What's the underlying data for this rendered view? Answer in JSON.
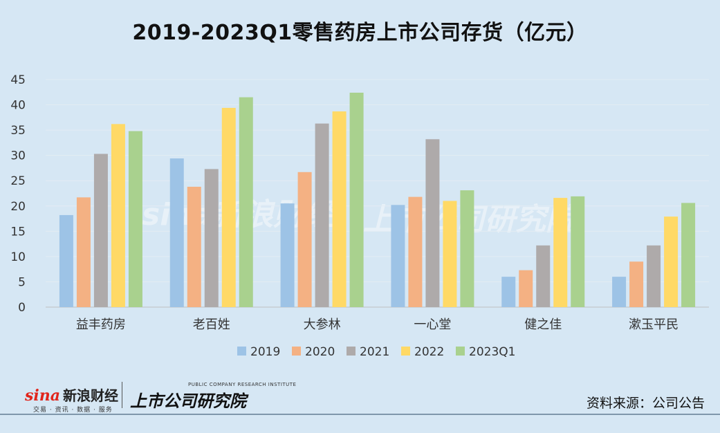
{
  "title": "2019-2023Q1零售药房上市公司存货（亿元）",
  "source": "资料来源：公司公告",
  "logo_sina": {
    "brand": "sina",
    "brand_cn": "新浪财经",
    "sub": "交易 · 资讯 · 数据 · 服务"
  },
  "logo_research": {
    "en": "PUBLIC COMPANY RESEARCH INSTITUTE",
    "cn": "上市公司研究院"
  },
  "watermark": {
    "left": "sina新浪财经",
    "right": "上市公司研究院"
  },
  "colors": {
    "2019": "#9dc3e6",
    "2020": "#f4b183",
    "2021": "#aeaaaa",
    "2022": "#ffd966",
    "2023Q1": "#a9d18e"
  },
  "chart_data": {
    "type": "bar",
    "title": "2019-2023Q1零售药房上市公司存货（亿元）",
    "categories": [
      "益丰药房",
      "老百姓",
      "大参林",
      "一心堂",
      "健之佳",
      "漱玉平民"
    ],
    "ylim": [
      0,
      45
    ],
    "yticks": [
      0,
      5,
      10,
      15,
      20,
      25,
      30,
      35,
      40,
      45
    ],
    "grid": true,
    "legend_position": "bottom",
    "series": [
      {
        "name": "2019",
        "values": [
          18.2,
          29.4,
          20.5,
          20.2,
          6.0,
          6.0
        ]
      },
      {
        "name": "2020",
        "values": [
          21.7,
          23.8,
          26.7,
          21.8,
          7.3,
          9.0
        ]
      },
      {
        "name": "2021",
        "values": [
          30.3,
          27.3,
          36.3,
          33.2,
          12.2,
          12.2
        ]
      },
      {
        "name": "2022",
        "values": [
          36.2,
          39.4,
          38.7,
          21.0,
          21.6,
          17.9
        ]
      },
      {
        "name": "2023Q1",
        "values": [
          34.8,
          41.5,
          42.4,
          23.1,
          21.9,
          20.6
        ]
      }
    ]
  }
}
